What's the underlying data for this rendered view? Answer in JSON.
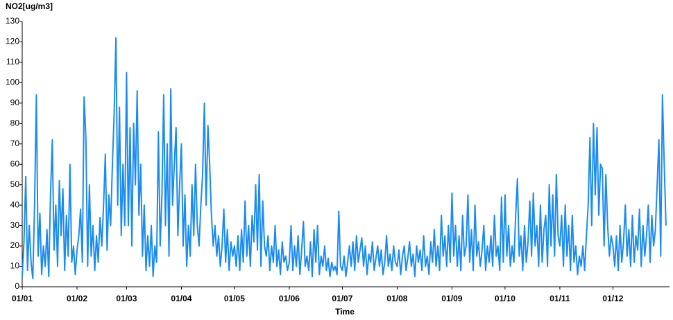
{
  "chart_data": {
    "type": "line",
    "ylabel": "NO2[ug/m3]",
    "xlabel": "Time",
    "color": "#1a8cf0",
    "xlim": [
      0,
      366
    ],
    "ylim": [
      0,
      130
    ],
    "yticks": [
      0,
      10,
      20,
      30,
      40,
      50,
      60,
      70,
      80,
      90,
      100,
      110,
      120,
      130
    ],
    "xticks": [
      {
        "value": 0,
        "label": "01/01"
      },
      {
        "value": 31,
        "label": "01/02"
      },
      {
        "value": 59,
        "label": "01/03"
      },
      {
        "value": 90,
        "label": "01/04"
      },
      {
        "value": 120,
        "label": "01/05"
      },
      {
        "value": 151,
        "label": "01/06"
      },
      {
        "value": 181,
        "label": "01/07"
      },
      {
        "value": 212,
        "label": "01/08"
      },
      {
        "value": 243,
        "label": "01/09"
      },
      {
        "value": 273,
        "label": "01/10"
      },
      {
        "value": 304,
        "label": "01/11"
      },
      {
        "value": 334,
        "label": "01/12"
      }
    ],
    "x": [
      0,
      1,
      2,
      3,
      4,
      5,
      6,
      7,
      8,
      9,
      10,
      11,
      12,
      13,
      14,
      15,
      16,
      17,
      18,
      19,
      20,
      21,
      22,
      23,
      24,
      25,
      26,
      27,
      28,
      29,
      30,
      31,
      32,
      33,
      34,
      35,
      36,
      37,
      38,
      39,
      40,
      41,
      42,
      43,
      44,
      45,
      46,
      47,
      48,
      49,
      50,
      51,
      52,
      53,
      54,
      55,
      56,
      57,
      58,
      59,
      60,
      61,
      62,
      63,
      64,
      65,
      66,
      67,
      68,
      69,
      70,
      71,
      72,
      73,
      74,
      75,
      76,
      77,
      78,
      79,
      80,
      81,
      82,
      83,
      84,
      85,
      86,
      87,
      88,
      89,
      90,
      91,
      92,
      93,
      94,
      95,
      96,
      97,
      98,
      99,
      100,
      101,
      102,
      103,
      104,
      105,
      106,
      107,
      108,
      109,
      110,
      111,
      112,
      113,
      114,
      115,
      116,
      117,
      118,
      119,
      120,
      121,
      122,
      123,
      124,
      125,
      126,
      127,
      128,
      129,
      130,
      131,
      132,
      133,
      134,
      135,
      136,
      137,
      138,
      139,
      140,
      141,
      142,
      143,
      144,
      145,
      146,
      147,
      148,
      149,
      150,
      151,
      152,
      153,
      154,
      155,
      156,
      157,
      158,
      159,
      160,
      161,
      162,
      163,
      164,
      165,
      166,
      167,
      168,
      169,
      170,
      171,
      172,
      173,
      174,
      175,
      176,
      177,
      178,
      179,
      180,
      181,
      182,
      183,
      184,
      185,
      186,
      187,
      188,
      189,
      190,
      191,
      192,
      193,
      194,
      195,
      196,
      197,
      198,
      199,
      200,
      201,
      202,
      203,
      204,
      205,
      206,
      207,
      208,
      209,
      210,
      211,
      212,
      213,
      214,
      215,
      216,
      217,
      218,
      219,
      220,
      221,
      222,
      223,
      224,
      225,
      226,
      227,
      228,
      229,
      230,
      231,
      232,
      233,
      234,
      235,
      236,
      237,
      238,
      239,
      240,
      241,
      242,
      243,
      244,
      245,
      246,
      247,
      248,
      249,
      250,
      251,
      252,
      253,
      254,
      255,
      256,
      257,
      258,
      259,
      260,
      261,
      262,
      263,
      264,
      265,
      266,
      267,
      268,
      269,
      270,
      271,
      272,
      273,
      274,
      275,
      276,
      277,
      278,
      279,
      280,
      281,
      282,
      283,
      284,
      285,
      286,
      287,
      288,
      289,
      290,
      291,
      292,
      293,
      294,
      295,
      296,
      297,
      298,
      299,
      300,
      301,
      302,
      303,
      304,
      305,
      306,
      307,
      308,
      309,
      310,
      311,
      312,
      313,
      314,
      315,
      316,
      317,
      318,
      319,
      320,
      321,
      322,
      323,
      324,
      325,
      326,
      327,
      328,
      329,
      330,
      331,
      332,
      333,
      334,
      335,
      336,
      337,
      338,
      339,
      340,
      341,
      342,
      343,
      344,
      345,
      346,
      347,
      348,
      349,
      350,
      351,
      352,
      353,
      354,
      355,
      356,
      357,
      358,
      359,
      360,
      361,
      362,
      363,
      364
    ],
    "values": [
      5,
      22,
      54,
      8,
      30,
      12,
      4,
      40,
      94,
      15,
      36,
      6,
      20,
      10,
      28,
      5,
      45,
      72,
      18,
      40,
      10,
      52,
      25,
      48,
      8,
      35,
      15,
      60,
      12,
      20,
      6,
      18,
      25,
      38,
      12,
      93,
      73,
      10,
      50,
      15,
      30,
      8,
      25,
      12,
      34,
      20,
      40,
      65,
      18,
      45,
      30,
      60,
      85,
      122,
      40,
      88,
      25,
      60,
      30,
      105,
      30,
      78,
      20,
      80,
      50,
      96,
      35,
      60,
      15,
      40,
      8,
      25,
      10,
      30,
      5,
      20,
      12,
      76,
      20,
      45,
      94,
      30,
      70,
      15,
      97,
      40,
      60,
      78,
      25,
      50,
      70,
      20,
      45,
      10,
      30,
      15,
      50,
      25,
      60,
      30,
      20,
      40,
      55,
      90,
      40,
      79,
      60,
      35,
      20,
      30,
      15,
      25,
      10,
      20,
      38,
      12,
      28,
      8,
      22,
      15,
      20,
      10,
      25,
      8,
      28,
      12,
      42,
      15,
      30,
      10,
      35,
      22,
      50,
      18,
      55,
      10,
      42,
      20,
      15,
      25,
      8,
      20,
      12,
      30,
      10,
      18,
      6,
      22,
      12,
      15,
      8,
      12,
      30,
      8,
      20,
      10,
      25,
      6,
      18,
      32,
      10,
      15,
      8,
      22,
      5,
      28,
      12,
      30,
      6,
      15,
      10,
      20,
      8,
      14,
      5,
      12,
      8,
      10,
      6,
      37,
      10,
      8,
      15,
      5,
      12,
      20,
      10,
      22,
      8,
      25,
      12,
      18,
      24,
      10,
      20,
      6,
      16,
      12,
      22,
      8,
      14,
      20,
      10,
      18,
      6,
      12,
      25,
      10,
      16,
      8,
      20,
      12,
      10,
      18,
      6,
      15,
      20,
      8,
      14,
      22,
      10,
      16,
      5,
      20,
      12,
      18,
      8,
      25,
      10,
      15,
      6,
      22,
      12,
      28,
      10,
      20,
      8,
      35,
      15,
      25,
      10,
      30,
      12,
      46,
      15,
      30,
      10,
      25,
      8,
      35,
      15,
      20,
      45,
      12,
      28,
      8,
      40,
      15,
      22,
      10,
      18,
      30,
      8,
      20,
      12,
      25,
      10,
      35,
      15,
      20,
      8,
      44,
      12,
      45,
      15,
      30,
      10,
      20,
      12,
      35,
      53,
      15,
      25,
      8,
      30,
      12,
      22,
      42,
      15,
      46,
      20,
      30,
      10,
      40,
      12,
      28,
      35,
      10,
      50,
      20,
      45,
      15,
      55,
      25,
      20,
      35,
      10,
      40,
      15,
      30,
      8,
      35,
      12,
      20,
      6,
      15,
      10,
      20,
      8,
      25,
      40,
      73,
      30,
      80,
      45,
      78,
      35,
      60,
      58,
      20,
      55,
      30,
      15,
      25,
      20,
      10,
      25,
      8,
      30,
      12,
      22,
      40,
      15,
      28,
      10,
      35,
      12,
      25,
      18,
      38,
      10,
      30,
      15,
      25,
      40,
      12,
      35,
      20,
      28,
      50,
      72,
      15,
      94,
      60,
      30
    ]
  }
}
